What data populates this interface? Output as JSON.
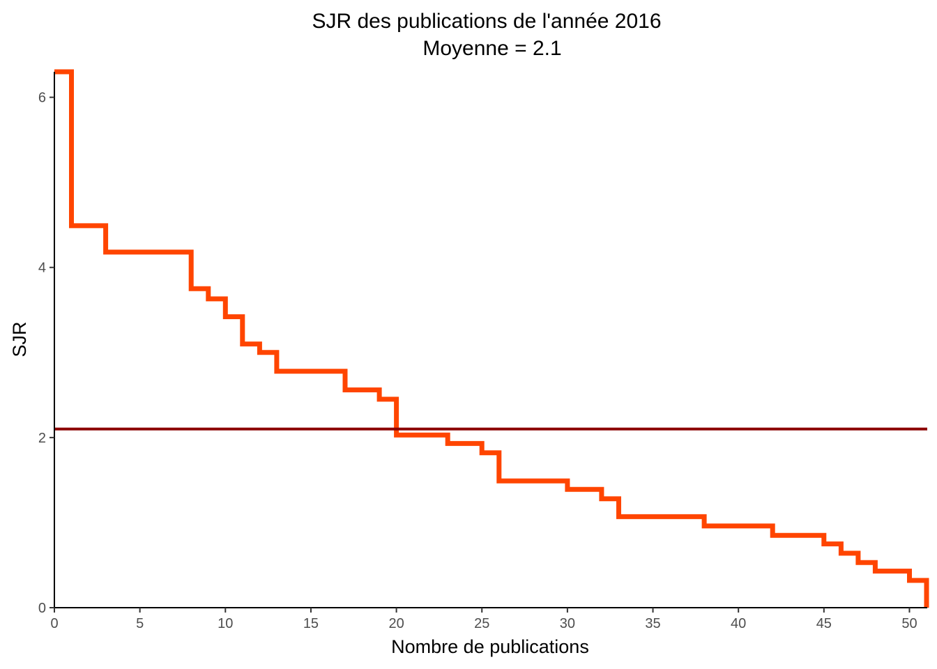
{
  "chart_data": {
    "type": "line",
    "step": true,
    "title": "SJR des publications de l'année 2016",
    "subtitle": "Moyenne = 2.1",
    "xlabel": "Nombre de publications",
    "ylabel": "SJR",
    "xlim": [
      0,
      51
    ],
    "ylim": [
      0,
      6.3
    ],
    "xticks": [
      "0",
      "5",
      "10",
      "15",
      "20",
      "25",
      "30",
      "35",
      "40",
      "45",
      "50"
    ],
    "yticks": [
      "0",
      "2",
      "4",
      "6"
    ],
    "grid": false,
    "legend": "none",
    "series": [
      {
        "color": "#FF4500",
        "points": [
          [
            0,
            6.3
          ],
          [
            1,
            6.3
          ],
          [
            1,
            4.49
          ],
          [
            3,
            4.49
          ],
          [
            3,
            4.18
          ],
          [
            8,
            4.18
          ],
          [
            8,
            3.75
          ],
          [
            9,
            3.75
          ],
          [
            9,
            3.63
          ],
          [
            10,
            3.63
          ],
          [
            10,
            3.42
          ],
          [
            11,
            3.42
          ],
          [
            11,
            3.1
          ],
          [
            12,
            3.1
          ],
          [
            12,
            3.0
          ],
          [
            13,
            3.0
          ],
          [
            13,
            2.78
          ],
          [
            17,
            2.78
          ],
          [
            17,
            2.56
          ],
          [
            19,
            2.56
          ],
          [
            19,
            2.45
          ],
          [
            20,
            2.45
          ],
          [
            20,
            2.03
          ],
          [
            23,
            2.03
          ],
          [
            23,
            1.93
          ],
          [
            25,
            1.93
          ],
          [
            25,
            1.82
          ],
          [
            26,
            1.82
          ],
          [
            26,
            1.49
          ],
          [
            30,
            1.49
          ],
          [
            30,
            1.39
          ],
          [
            32,
            1.39
          ],
          [
            32,
            1.28
          ],
          [
            33,
            1.28
          ],
          [
            33,
            1.07
          ],
          [
            38,
            1.07
          ],
          [
            38,
            0.96
          ],
          [
            42,
            0.96
          ],
          [
            42,
            0.85
          ],
          [
            45,
            0.85
          ],
          [
            45,
            0.75
          ],
          [
            46,
            0.75
          ],
          [
            46,
            0.64
          ],
          [
            47,
            0.64
          ],
          [
            47,
            0.53
          ],
          [
            48,
            0.53
          ],
          [
            48,
            0.43
          ],
          [
            50,
            0.43
          ],
          [
            50,
            0.32
          ],
          [
            51,
            0.32
          ],
          [
            51,
            0.0
          ]
        ]
      }
    ],
    "hline": {
      "y": 2.1,
      "color": "#8B0000"
    }
  }
}
